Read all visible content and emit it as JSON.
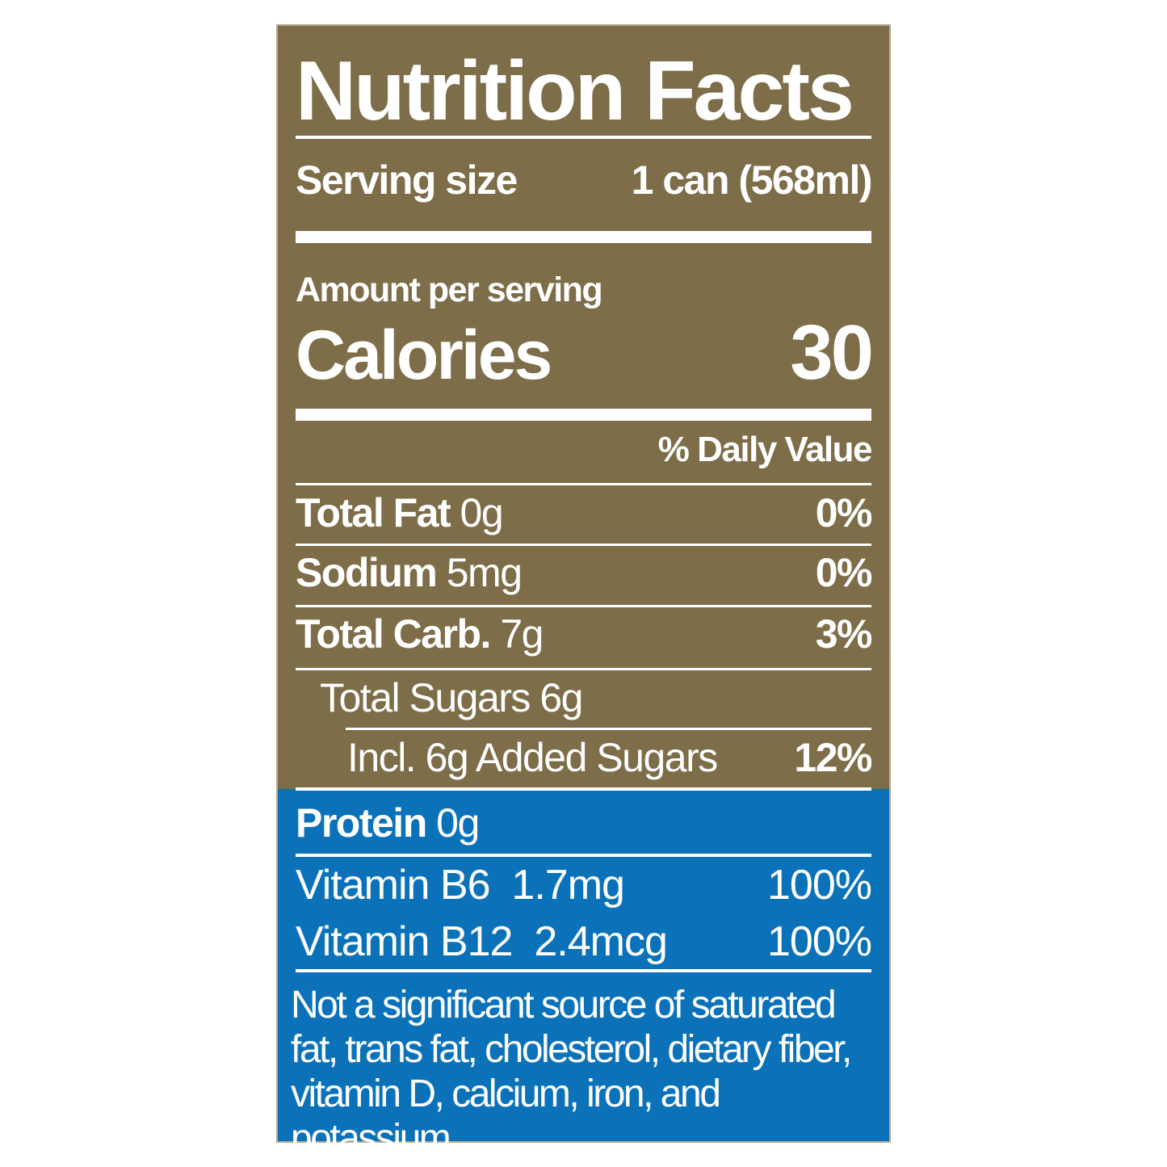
{
  "label": {
    "title": "Nutrition Facts",
    "serving_size_label": "Serving size",
    "serving_size_value": "1 can (568ml)",
    "amount_per_serving": "Amount per serving",
    "calories_label": "Calories",
    "calories_value": "30",
    "daily_value_header": "% Daily Value",
    "nutrients": [
      {
        "name": "Total Fat",
        "amount": "0g",
        "dv": "0%"
      },
      {
        "name": "Sodium",
        "amount": "5mg",
        "dv": "0%"
      },
      {
        "name": "Total Carb.",
        "amount": "7g",
        "dv": "3%"
      },
      {
        "name": "Total Sugars 6g",
        "amount": "",
        "dv": ""
      },
      {
        "name": "Incl. 6g Added Sugars",
        "amount": "",
        "dv": "12%"
      },
      {
        "name": "Protein",
        "amount": "0g",
        "dv": ""
      }
    ],
    "vitamins": [
      {
        "name": "Vitamin B6",
        "amount": "1.7mg",
        "dv": "100%"
      },
      {
        "name": "Vitamin B12",
        "amount": "2.4mcg",
        "dv": "100%"
      }
    ],
    "footnote": "Not a significant source of saturated fat, trans fat, cholesterol, dietary fiber, vitamin D, calcium, iron, and potassium."
  },
  "colors": {
    "brown": "#7d6d48",
    "blue": "#0b72b9",
    "text": "#ffffff"
  }
}
